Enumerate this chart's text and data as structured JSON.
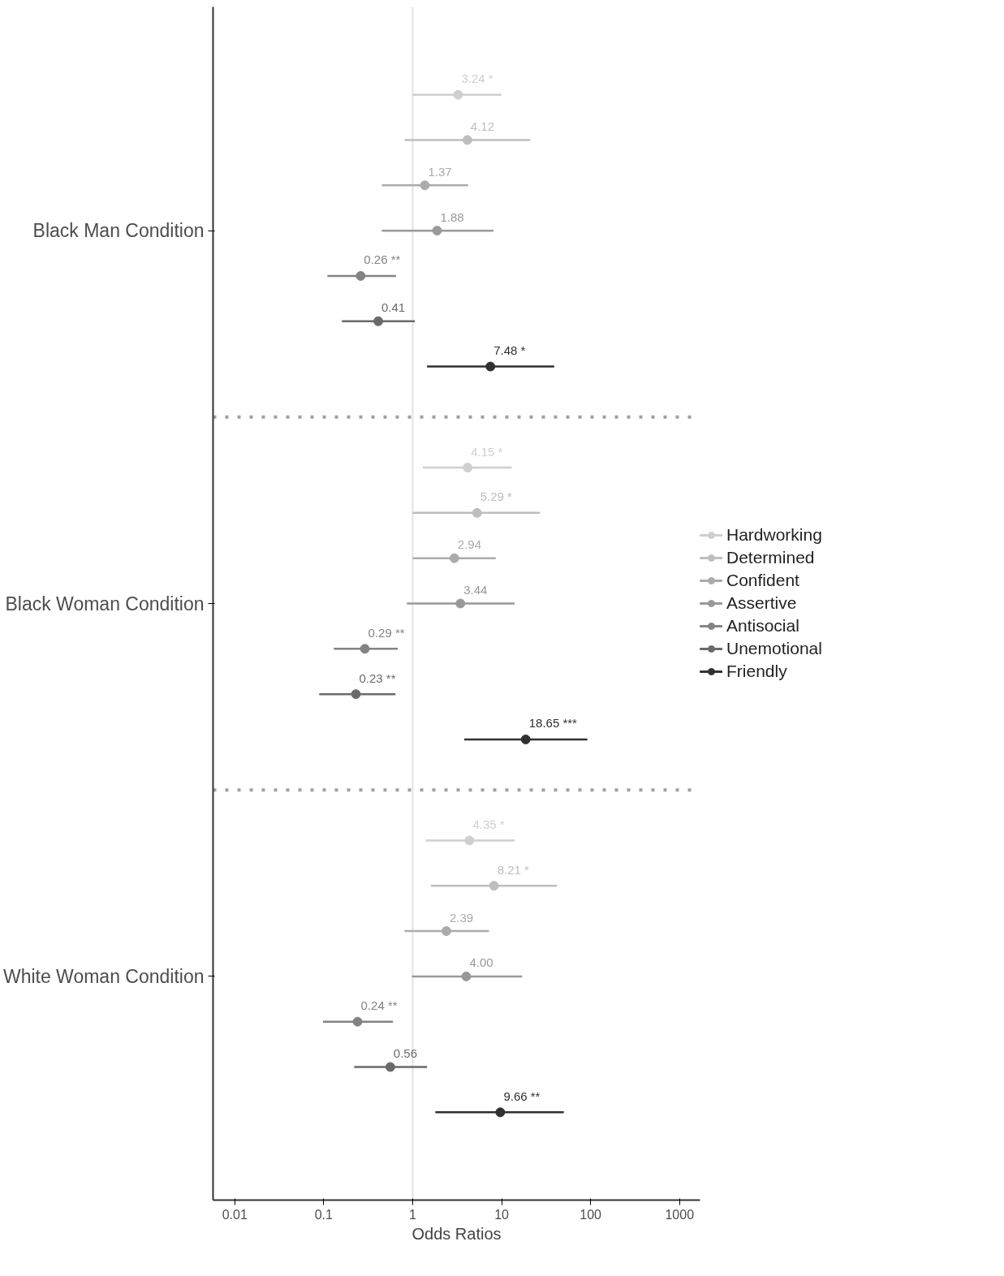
{
  "chart_data": {
    "type": "scatter",
    "orientation": "horizontal",
    "xlabel": "Odds Ratios",
    "categories": [
      "Black Man Condition",
      "Black Woman Condition",
      "White Woman Condition"
    ],
    "log": "x",
    "xlim": [
      0.0057,
      1700
    ],
    "xticks": [
      0.01,
      0.1,
      1,
      10,
      100,
      1000
    ],
    "grid": false,
    "legend": "right",
    "marker": "circle",
    "series": [
      {
        "name": "Hardworking",
        "color": "#cfcfcf",
        "values": [
          3.24,
          4.15,
          4.35
        ],
        "errors": [
          [
            1.0,
            10
          ],
          [
            1.3,
            13
          ],
          [
            1.4,
            14
          ]
        ],
        "value_labels": [
          "3.24 *",
          "4.15 *",
          "4.35 *"
        ]
      },
      {
        "name": "Determined",
        "color": "#bebebe",
        "values": [
          4.12,
          5.29,
          8.21
        ],
        "errors": [
          [
            0.81,
            21
          ],
          [
            1.0,
            27
          ],
          [
            1.6,
            42
          ]
        ],
        "value_labels": [
          "4.12",
          "5.29 *",
          "8.21 *"
        ]
      },
      {
        "name": "Confident",
        "color": "#ababab",
        "values": [
          1.37,
          2.94,
          2.39
        ],
        "errors": [
          [
            0.45,
            4.2
          ],
          [
            1.0,
            8.6
          ],
          [
            0.81,
            7.2
          ]
        ],
        "value_labels": [
          "1.37",
          "2.94",
          "2.39"
        ]
      },
      {
        "name": "Assertive",
        "color": "#999999",
        "values": [
          1.88,
          3.44,
          4.0
        ],
        "errors": [
          [
            0.45,
            8.1
          ],
          [
            0.86,
            14
          ],
          [
            0.98,
            17
          ]
        ],
        "value_labels": [
          "1.88",
          "3.44",
          "4.00"
        ]
      },
      {
        "name": "Antisocial",
        "color": "#838383",
        "values": [
          0.26,
          0.29,
          0.24
        ],
        "errors": [
          [
            0.11,
            0.65
          ],
          [
            0.13,
            0.68
          ],
          [
            0.098,
            0.6
          ]
        ],
        "value_labels": [
          "0.26 **",
          "0.29 **",
          "0.24 **"
        ]
      },
      {
        "name": "Unemotional",
        "color": "#6a6a6a",
        "values": [
          0.41,
          0.23,
          0.56
        ],
        "errors": [
          [
            0.16,
            1.06
          ],
          [
            0.089,
            0.64
          ],
          [
            0.22,
            1.45
          ]
        ],
        "value_labels": [
          "0.41",
          "0.23 **",
          "0.56"
        ]
      },
      {
        "name": "Friendly",
        "color": "#303030",
        "values": [
          7.48,
          18.65,
          9.66
        ],
        "errors": [
          [
            1.45,
            39
          ],
          [
            3.8,
            92
          ],
          [
            1.8,
            50
          ]
        ],
        "value_labels": [
          "7.48 *",
          "18.65 ***",
          "9.66 **"
        ]
      }
    ],
    "ref_lines": [
      {
        "axis": "x",
        "value": 1,
        "color": "#e3e3e3",
        "line_style": "solid"
      }
    ]
  }
}
